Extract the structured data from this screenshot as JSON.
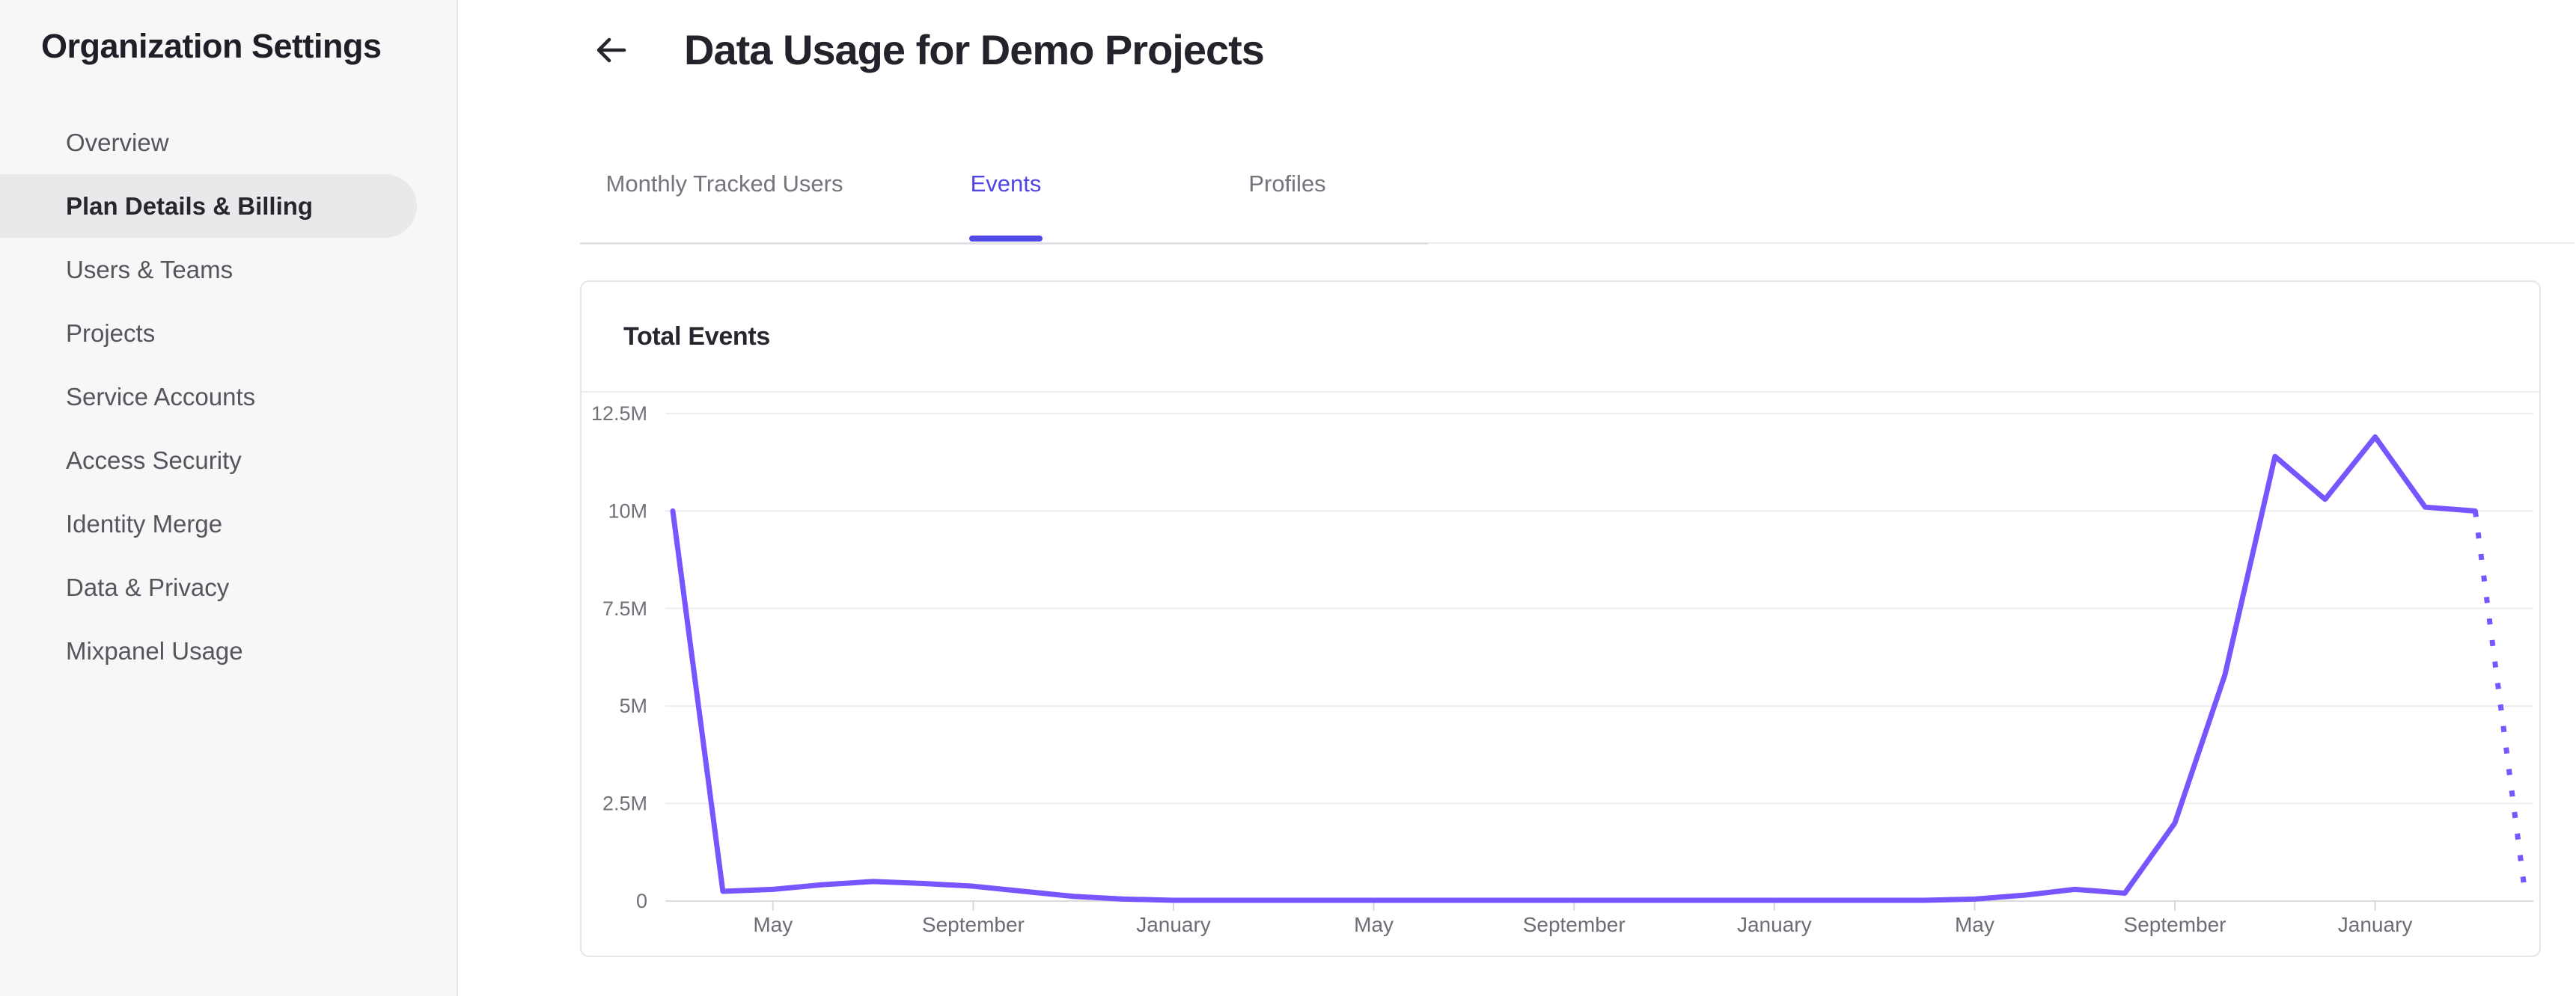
{
  "sidebar": {
    "title": "Organization Settings",
    "items": [
      {
        "label": "Overview",
        "selected": false
      },
      {
        "label": "Plan Details & Billing",
        "selected": true
      },
      {
        "label": "Users & Teams",
        "selected": false
      },
      {
        "label": "Projects",
        "selected": false
      },
      {
        "label": "Service Accounts",
        "selected": false
      },
      {
        "label": "Access Security",
        "selected": false
      },
      {
        "label": "Identity Merge",
        "selected": false
      },
      {
        "label": "Data & Privacy",
        "selected": false
      },
      {
        "label": "Mixpanel Usage",
        "selected": false
      }
    ]
  },
  "header": {
    "title": "Data Usage for Demo Projects",
    "back_icon": "arrow-left"
  },
  "tabs": [
    {
      "label": "Monthly Tracked Users",
      "active": false
    },
    {
      "label": "Events",
      "active": true
    },
    {
      "label": "Profiles",
      "active": false
    }
  ],
  "card": {
    "title": "Total Events"
  },
  "colors": {
    "accent_tab": "#4f44e8",
    "line": "#7856ff",
    "gridline": "#ededf0",
    "axis_line": "#dbdbe0",
    "axis_text": "#71717a"
  },
  "chart_data": {
    "type": "line",
    "title": "Total Events",
    "grid": "horizontal",
    "ylim_millions": [
      0,
      12.5
    ],
    "y_tick_values_millions": [
      12.5,
      10,
      7.5,
      5,
      2.5,
      0
    ],
    "y_tick_labels": [
      "12.5M",
      "10M",
      "7.5M",
      "5M",
      "2.5M",
      "0"
    ],
    "x_tick_labels": [
      "May",
      "September",
      "January",
      "May",
      "September",
      "January",
      "May",
      "September",
      "January"
    ],
    "x_tick_point_indices": [
      2,
      6,
      10,
      14,
      18,
      22,
      26,
      30,
      34
    ],
    "series": [
      {
        "name": "Total Events",
        "color": "#7856ff",
        "values_millions": [
          10,
          0.25,
          0.3,
          0.42,
          0.5,
          0.45,
          0.38,
          0.25,
          0.12,
          0.05,
          0.02,
          0.02,
          0.02,
          0.02,
          0.02,
          0.02,
          0.02,
          0.02,
          0.02,
          0.02,
          0.02,
          0.02,
          0.02,
          0.02,
          0.02,
          0.02,
          0.05,
          0.15,
          0.3,
          0.2,
          2.0,
          5.8,
          11.4,
          10.3,
          11.9,
          10.1,
          10.0
        ],
        "projection_tail": {
          "style": "dotted",
          "end_value_millions": 0.15
        }
      }
    ]
  }
}
